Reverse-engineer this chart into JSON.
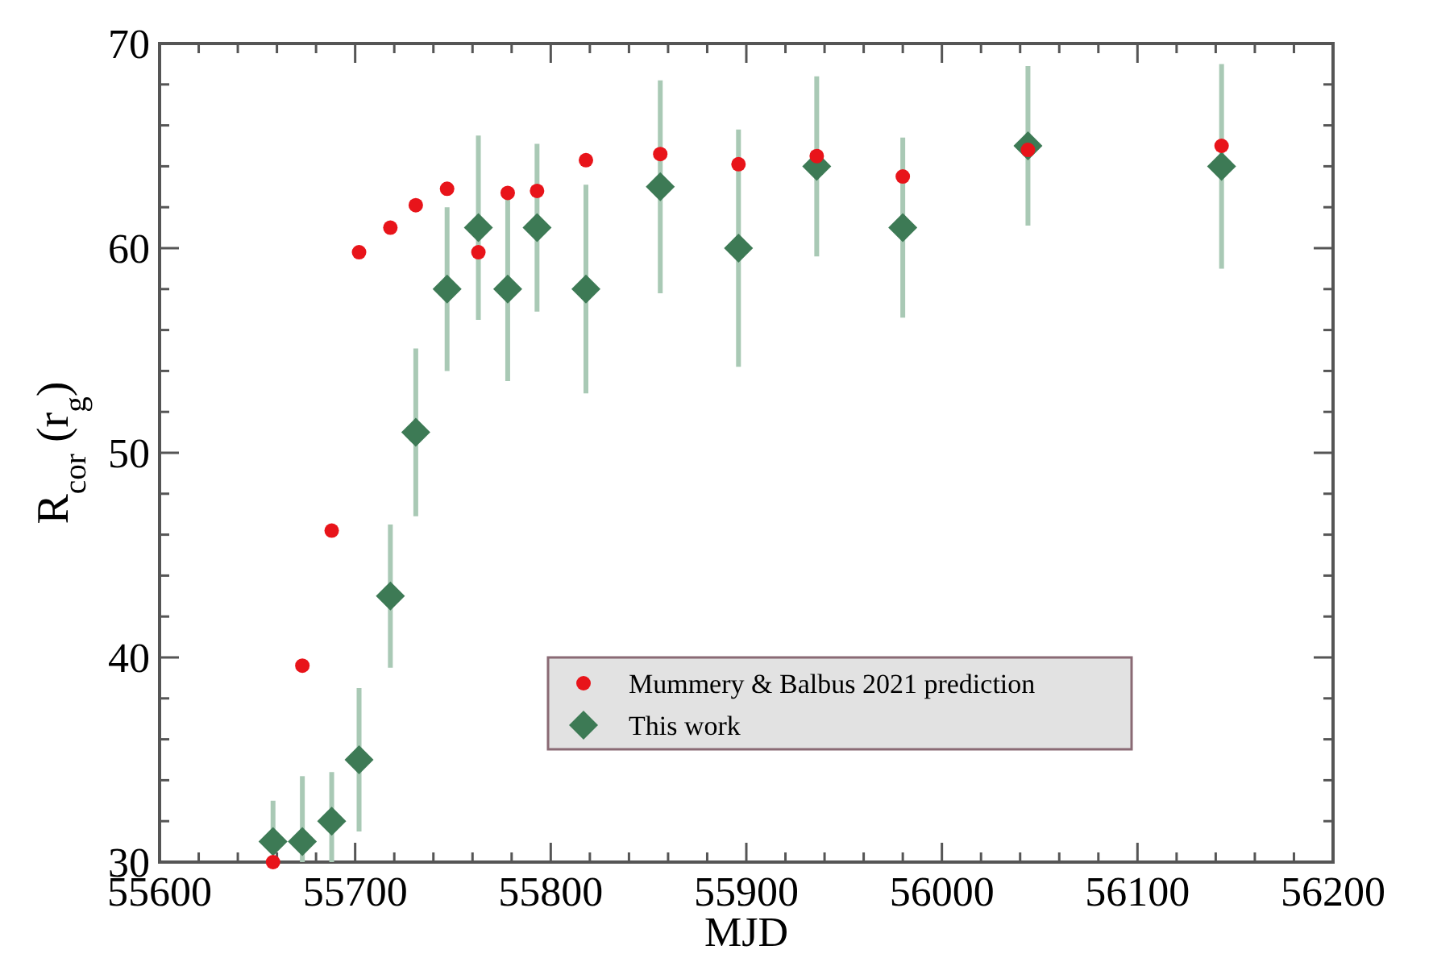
{
  "chart_data": {
    "type": "scatter",
    "xlabel": "MJD",
    "ylabel": "R$_{cor}$ (r$_{g}$)",
    "xlim": [
      55600,
      56200
    ],
    "xticks": [
      55600,
      {
        "value": 55620,
        "label": null
      },
      {
        "value": 55640,
        "label": null
      },
      {
        "value": 55660,
        "label": null
      },
      {
        "value": 55680,
        "label": null
      },
      55700,
      {
        "value": 55720,
        "label": null
      },
      {
        "value": 55740,
        "label": null
      },
      {
        "value": 55760,
        "label": null
      },
      {
        "value": 55780,
        "label": null
      },
      55800,
      {
        "value": 55820,
        "label": null
      },
      {
        "value": 55840,
        "label": null
      },
      {
        "value": 55860,
        "label": null
      },
      {
        "value": 55880,
        "label": null
      },
      55900,
      {
        "value": 55920,
        "label": null
      },
      {
        "value": 55940,
        "label": null
      },
      {
        "value": 55960,
        "label": null
      },
      {
        "value": 55980,
        "label": null
      },
      56000,
      {
        "value": 56020,
        "label": null
      },
      {
        "value": 56040,
        "label": null
      },
      {
        "value": 56060,
        "label": null
      },
      {
        "value": 56080,
        "label": null
      },
      56100,
      {
        "value": 56120,
        "label": null
      },
      {
        "value": 56140,
        "label": null
      },
      {
        "value": 56160,
        "label": null
      },
      {
        "value": 56180,
        "label": null
      },
      56200
    ],
    "ylim": [
      30,
      70
    ],
    "yticks": [
      30,
      {
        "value": 32,
        "label": null
      },
      {
        "value": 34,
        "label": null
      },
      {
        "value": 36,
        "label": null
      },
      {
        "value": 38,
        "label": null
      },
      40,
      {
        "value": 42,
        "label": null
      },
      {
        "value": 44,
        "label": null
      },
      {
        "value": 46,
        "label": null
      },
      {
        "value": 48,
        "label": null
      },
      50,
      {
        "value": 52,
        "label": null
      },
      {
        "value": 54,
        "label": null
      },
      {
        "value": 56,
        "label": null
      },
      {
        "value": 58,
        "label": null
      },
      60,
      {
        "value": 62,
        "label": null
      },
      {
        "value": 64,
        "label": null
      },
      {
        "value": 66,
        "label": null
      },
      {
        "value": 68,
        "label": null
      },
      70
    ],
    "grid": false,
    "legend": "bottom right",
    "series": [
      {
        "name": "Mummery & Balbus 2021 prediction",
        "color": "#e8141a",
        "marker": "circle",
        "x": [
          55658,
          55673,
          55688,
          55702,
          55718,
          55731,
          55747,
          55763,
          55778,
          55793,
          55818,
          55856,
          55896,
          55936,
          55980,
          56044,
          56143
        ],
        "values": [
          30,
          39.6,
          46.2,
          59.8,
          61.0,
          62.1,
          62.9,
          59.8,
          62.7,
          62.8,
          64.3,
          64.6,
          64.1,
          64.5,
          63.5,
          64.8,
          65.0
        ]
      },
      {
        "name": "This work",
        "color": "#3d7a55",
        "marker": "diamond",
        "x": [
          55658,
          55673,
          55688,
          55702,
          55718,
          55731,
          55747,
          55763,
          55778,
          55793,
          55818,
          55856,
          55896,
          55936,
          55980,
          56044,
          56143
        ],
        "values": [
          31,
          31,
          32,
          35,
          43,
          51,
          58,
          61,
          58,
          61,
          58,
          63,
          60,
          64,
          61,
          65,
          64
        ],
        "errors": [
          [
            31,
            33
          ],
          [
            30,
            34.2
          ],
          [
            30,
            34.4
          ],
          3.5,
          3.5,
          4.1,
          4,
          4.5,
          4.5,
          4.1,
          5.1,
          5.2,
          5.8,
          4.4,
          4.4,
          3.9,
          5
        ]
      }
    ]
  }
}
